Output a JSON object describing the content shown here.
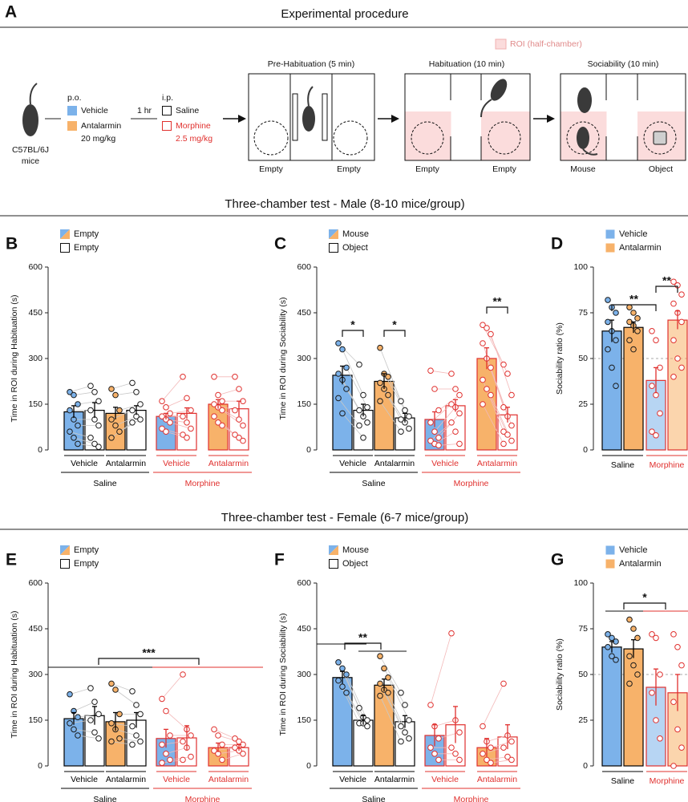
{
  "panel_a": {
    "letter": "A",
    "title": "Experimental procedure",
    "strain": "C57BL/6J",
    "strain2": "mice",
    "po": "p.o.",
    "vehicle": "Vehicle",
    "antalarmin": "Antalarmin",
    "antalarmin_dose": "20 mg/kg",
    "interval": "1 hr",
    "ip": "i.p.",
    "saline": "Saline",
    "morphine": "Morphine",
    "morphine_dose": "2.5 mg/kg",
    "roi": "ROI (half-chamber)",
    "stages": [
      {
        "title": "Pre-Habituation (5 min)",
        "left": "Empty",
        "right": "Empty"
      },
      {
        "title": "Habituation (10 min)",
        "left": "Empty",
        "right": "Empty"
      },
      {
        "title": "Sociability (10 min)",
        "left": "Mouse",
        "right": "Object"
      }
    ]
  },
  "sections": [
    "Three-chamber test - Male (8-10 mice/group)",
    "Three-chamber test - Female (6-7 mice/group)"
  ],
  "chart_data": [
    {
      "type": "bar",
      "panel": "B",
      "ylabel": "Time in ROI during Habituation (s)",
      "ylim": [
        0,
        600
      ],
      "yticks": [
        0,
        150,
        300,
        450,
        600
      ],
      "categories": [
        "Vehicle",
        "Antalarmin",
        "Vehicle",
        "Antalarmin"
      ],
      "category_colors": [
        "#000000",
        "#000000",
        "#e0302e",
        "#e0302e"
      ],
      "group_colors": [
        "#7cb2ea",
        "#f7b26a",
        "#7cb2ea",
        "#f7b26a"
      ],
      "supergroups": [
        {
          "label": "Saline",
          "color": "#000000"
        },
        {
          "label": "Morphine",
          "color": "#e0302e"
        }
      ],
      "series": [
        {
          "name": "Empty",
          "values": [
            125,
            120,
            110,
            150
          ],
          "errors": [
            20,
            20,
            10,
            15
          ],
          "points": [
            [
              190,
              180,
              150,
              130,
              100,
              80,
              60,
              40,
              20
            ],
            [
              200,
              180,
              130,
              100,
              80,
              60,
              40
            ],
            [
              160,
              140,
              120,
              110,
              100,
              90,
              70,
              60
            ],
            [
              240,
              180,
              160,
              150,
              140,
              130,
              110,
              90,
              80
            ]
          ]
        },
        {
          "name": "Empty",
          "values": [
            130,
            130,
            120,
            135
          ],
          "errors": [
            25,
            15,
            18,
            25
          ],
          "points": [
            [
              210,
              190,
              160,
              130,
              100,
              80,
              40,
              20,
              10
            ],
            [
              220,
              190,
              150,
              130,
              110,
              100,
              90
            ],
            [
              240,
              170,
              130,
              110,
              90,
              70,
              50,
              40
            ],
            [
              240,
              200,
              160,
              130,
              100,
              80,
              50,
              40,
              30
            ]
          ]
        }
      ],
      "annotations": []
    },
    {
      "type": "bar",
      "panel": "C",
      "ylabel": "Time in ROI during Sociability (s)",
      "ylim": [
        0,
        600
      ],
      "yticks": [
        0,
        150,
        300,
        450,
        600
      ],
      "categories": [
        "Vehicle",
        "Antalarmin",
        "Vehicle",
        "Antalarmin"
      ],
      "category_colors": [
        "#000000",
        "#000000",
        "#e0302e",
        "#e0302e"
      ],
      "group_colors": [
        "#7cb2ea",
        "#f7b26a",
        "#7cb2ea",
        "#f7b26a"
      ],
      "supergroups": [
        {
          "label": "Saline",
          "color": "#000000"
        },
        {
          "label": "Morphine",
          "color": "#e0302e"
        }
      ],
      "series": [
        {
          "name": "Mouse",
          "values": [
            245,
            225,
            100,
            300
          ],
          "errors": [
            30,
            25,
            25,
            35
          ],
          "points": [
            [
              350,
              330,
              270,
              250,
              230,
              200,
              170,
              120
            ],
            [
              335,
              250,
              240,
              220,
              200,
              180,
              160
            ],
            [
              260,
              200,
              130,
              90,
              60,
              40,
              30,
              20,
              15
            ],
            [
              410,
              400,
              380,
              350,
              300,
              270,
              230,
              200,
              180,
              150
            ]
          ]
        },
        {
          "name": "Object",
          "values": [
            130,
            105,
            145,
            115
          ],
          "errors": [
            20,
            15,
            20,
            25
          ],
          "points": [
            [
              280,
              180,
              140,
              130,
              110,
              90,
              80,
              40
            ],
            [
              160,
              130,
              110,
              100,
              90,
              70,
              60
            ],
            [
              250,
              200,
              180,
              150,
              140,
              120,
              90,
              60,
              20
            ],
            [
              280,
              250,
              180,
              140,
              110,
              80,
              60,
              50,
              30,
              20
            ]
          ]
        }
      ],
      "annotations": [
        "*",
        "*",
        "**"
      ]
    },
    {
      "type": "bar",
      "panel": "D",
      "ylabel": "Sociability ratio (%)",
      "ylim": [
        0,
        100
      ],
      "yticks": [
        0,
        25,
        50,
        75,
        100
      ],
      "reference_line": 50,
      "categories": [
        "Saline",
        "Morphine"
      ],
      "category_colors": [
        "#000000",
        "#e0302e"
      ],
      "series": [
        {
          "name": "Vehicle",
          "color": "#7cb2ea",
          "values": [
            65,
            38
          ],
          "errors": [
            6,
            7
          ],
          "points": [
            [
              82,
              78,
              75,
              70,
              65,
              60,
              55,
              45,
              35
            ],
            [
              65,
              60,
              45,
              35,
              30,
              20,
              10,
              8
            ]
          ]
        },
        {
          "name": "Antalarmin",
          "color": "#f7b26a",
          "values": [
            67,
            71
          ],
          "errors": [
            3,
            5
          ],
          "points": [
            [
              78,
              75,
              72,
              70,
              68,
              65,
              60,
              55
            ],
            [
              92,
              90,
              85,
              80,
              75,
              70,
              60,
              50,
              45,
              40
            ]
          ]
        }
      ],
      "annotations": [
        "**",
        "**"
      ]
    },
    {
      "type": "bar",
      "panel": "E",
      "ylabel": "Time in ROI during Habituation (s)",
      "ylim": [
        0,
        600
      ],
      "yticks": [
        0,
        150,
        300,
        450,
        600
      ],
      "categories": [
        "Vehicle",
        "Antalarmin",
        "Vehicle",
        "Antalarmin"
      ],
      "category_colors": [
        "#000000",
        "#000000",
        "#e0302e",
        "#e0302e"
      ],
      "group_colors": [
        "#7cb2ea",
        "#f7b26a",
        "#7cb2ea",
        "#f7b26a"
      ],
      "supergroups": [
        {
          "label": "Saline",
          "color": "#000000"
        },
        {
          "label": "Morphine",
          "color": "#e0302e"
        }
      ],
      "series": [
        {
          "name": "Empty",
          "values": [
            155,
            145,
            90,
            60
          ],
          "errors": [
            20,
            30,
            30,
            15
          ],
          "points": [
            [
              235,
              180,
              160,
              140,
              120,
              100
            ],
            [
              270,
              250,
              170,
              140,
              120,
              90,
              80
            ],
            [
              220,
              180,
              100,
              70,
              40,
              20,
              10
            ],
            [
              120,
              100,
              70,
              50,
              40,
              20
            ]
          ]
        },
        {
          "name": "Empty",
          "values": [
            165,
            150,
            92,
            60
          ],
          "errors": [
            30,
            25,
            40,
            10
          ],
          "points": [
            [
              255,
              210,
              170,
              150,
              110,
              90
            ],
            [
              245,
              200,
              170,
              130,
              100,
              80,
              70
            ],
            [
              300,
              120,
              100,
              80,
              60,
              30,
              20
            ],
            [
              90,
              80,
              70,
              60,
              50,
              40
            ]
          ]
        }
      ],
      "annotations": [
        "***"
      ]
    },
    {
      "type": "bar",
      "panel": "F",
      "ylabel": "Time in ROI during Sociability (s)",
      "ylim": [
        0,
        600
      ],
      "yticks": [
        0,
        150,
        300,
        450,
        600
      ],
      "categories": [
        "Vehicle",
        "Antalarmin",
        "Vehicle",
        "Antalarmin"
      ],
      "category_colors": [
        "#000000",
        "#000000",
        "#e0302e",
        "#e0302e"
      ],
      "group_colors": [
        "#7cb2ea",
        "#f7b26a",
        "#7cb2ea",
        "#f7b26a"
      ],
      "supergroups": [
        {
          "label": "Saline",
          "color": "#000000"
        },
        {
          "label": "Morphine",
          "color": "#e0302e"
        }
      ],
      "series": [
        {
          "name": "Mouse",
          "values": [
            290,
            265,
            100,
            60
          ],
          "errors": [
            20,
            20,
            35,
            30
          ],
          "points": [
            [
              340,
              320,
              300,
              280,
              260,
              240
            ],
            [
              360,
              320,
              290,
              270,
              250,
              240,
              230
            ],
            [
              200,
              130,
              90,
              60,
              40,
              20
            ],
            [
              130,
              80,
              60,
              40,
              20,
              10
            ]
          ]
        },
        {
          "name": "Object",
          "values": [
            150,
            145,
            135,
            95
          ],
          "errors": [
            15,
            20,
            60,
            40
          ],
          "points": [
            [
              190,
              160,
              150,
              140,
              140,
              130
            ],
            [
              240,
              200,
              150,
              130,
              110,
              90,
              80
            ],
            [
              435,
              150,
              110,
              60,
              40,
              20
            ],
            [
              270,
              100,
              80,
              60,
              30,
              20
            ]
          ]
        }
      ],
      "annotations": [
        "**"
      ]
    },
    {
      "type": "bar",
      "panel": "G",
      "ylabel": "Sociability ratio (%)",
      "ylim": [
        0,
        100
      ],
      "yticks": [
        0,
        25,
        50,
        75,
        100
      ],
      "reference_line": 50,
      "categories": [
        "Saline",
        "Morphine"
      ],
      "category_colors": [
        "#000000",
        "#e0302e"
      ],
      "series": [
        {
          "name": "Vehicle",
          "color": "#7cb2ea",
          "values": [
            65,
            43
          ],
          "errors": [
            3,
            10
          ],
          "points": [
            [
              72,
              70,
              68,
              65,
              60,
              58
            ],
            [
              72,
              70,
              50,
              40,
              25,
              15
            ]
          ]
        },
        {
          "name": "Antalarmin",
          "color": "#f7b26a",
          "values": [
            64,
            40
          ],
          "errors": [
            5,
            10
          ],
          "points": [
            [
              80,
              75,
              70,
              60,
              55,
              50,
              45
            ],
            [
              72,
              65,
              55,
              35,
              20,
              10,
              0
            ]
          ]
        }
      ],
      "annotations": [
        "*"
      ]
    }
  ]
}
